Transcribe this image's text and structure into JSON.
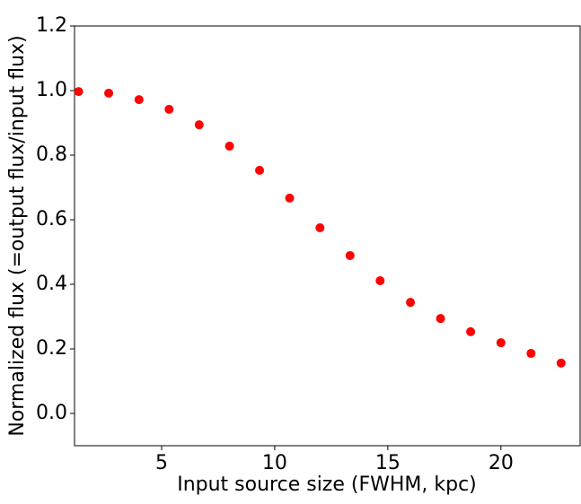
{
  "chart_data": {
    "type": "scatter",
    "xlabel": "Input source size (FWHM, kpc)",
    "ylabel": "Normalized flux (=output flux/input flux)",
    "series": [
      {
        "color": "#ff0000",
        "x": [
          1.33,
          2.66,
          4.0,
          5.33,
          6.66,
          8.0,
          9.33,
          10.66,
          12.0,
          13.33,
          14.66,
          16.0,
          17.33,
          18.66,
          20.0,
          21.33,
          22.66
        ],
        "values": [
          0.997,
          0.992,
          0.972,
          0.942,
          0.894,
          0.828,
          0.753,
          0.667,
          0.575,
          0.489,
          0.411,
          0.344,
          0.294,
          0.253,
          0.219,
          0.186,
          0.156
        ]
      }
    ],
    "xlim": [
      1.15,
      23.5
    ],
    "ylim": [
      -0.1,
      1.2
    ],
    "xticks": [
      5,
      10,
      15,
      20
    ],
    "yticks": [
      {
        "value": 0,
        "label": "0.0"
      },
      0.2,
      0.4,
      0.6,
      0.8,
      {
        "value": 1,
        "label": "1.0"
      },
      1.2
    ]
  }
}
